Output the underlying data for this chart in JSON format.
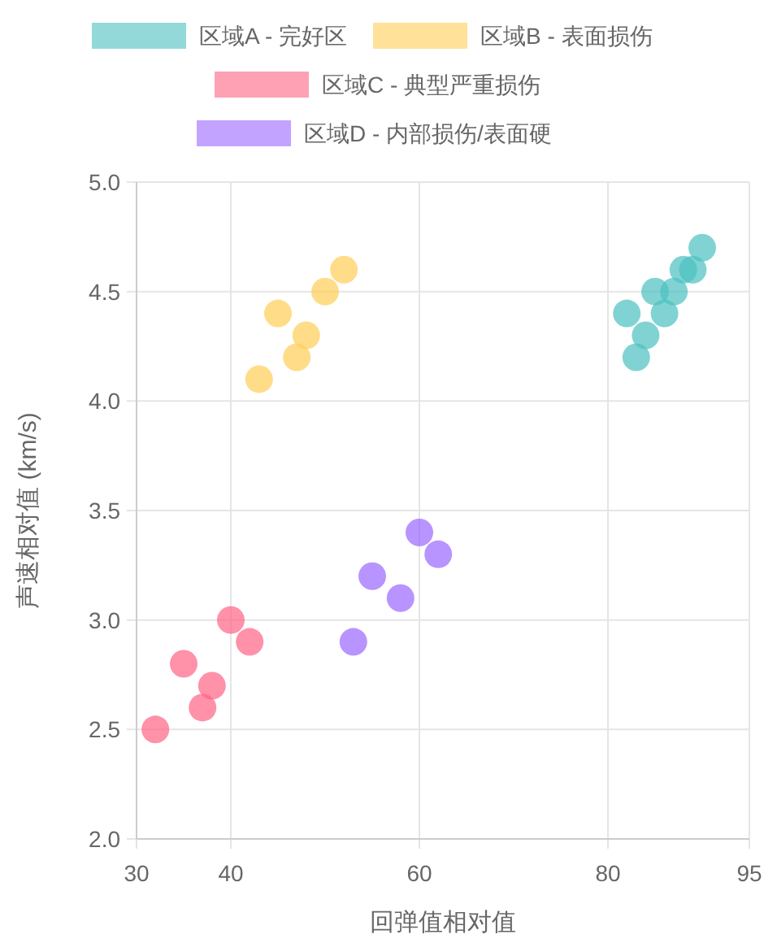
{
  "chart_data": {
    "type": "scatter",
    "xlabel": "回弹值相对值",
    "ylabel": "声速相对值 (km/s)",
    "xlim": [
      30,
      95
    ],
    "xticks": [
      30,
      40,
      60,
      80,
      95
    ],
    "ylim": [
      2.0,
      5.0
    ],
    "yticks": [
      {
        "value": 2,
        "label": "2.0"
      },
      {
        "value": 2.5,
        "label": "2.5"
      },
      {
        "value": 3,
        "label": "3.0"
      },
      {
        "value": 3.5,
        "label": "3.5"
      },
      {
        "value": 4,
        "label": "4.0"
      },
      {
        "value": 4.5,
        "label": "4.5"
      },
      {
        "value": 5,
        "label": "5.0"
      }
    ],
    "grid": true,
    "legend": "top",
    "marker": "circle",
    "series": [
      {
        "name": "区域A - 完好区",
        "color": "#4bc0c0",
        "x": [
          82,
          83,
          84,
          85,
          86,
          87,
          88,
          89,
          90
        ],
        "values": [
          4.4,
          4.2,
          4.3,
          4.5,
          4.4,
          4.5,
          4.6,
          4.6,
          4.7
        ]
      },
      {
        "name": "区域B - 表面损伤",
        "color": "#ffcd56",
        "x": [
          43,
          45,
          47,
          48,
          50,
          52
        ],
        "values": [
          4.1,
          4.4,
          4.2,
          4.3,
          4.5,
          4.6
        ]
      },
      {
        "name": "区域C - 典型严重损伤",
        "color": "#ff6384",
        "x": [
          32,
          35,
          37,
          38,
          40,
          42
        ],
        "values": [
          2.5,
          2.8,
          2.6,
          2.7,
          3.0,
          2.9
        ]
      },
      {
        "name": "区域D - 内部损伤/表面硬",
        "color": "#9966ff",
        "x": [
          53,
          55,
          58,
          60,
          62
        ],
        "values": [
          2.9,
          3.2,
          3.1,
          3.4,
          3.3
        ]
      }
    ]
  }
}
